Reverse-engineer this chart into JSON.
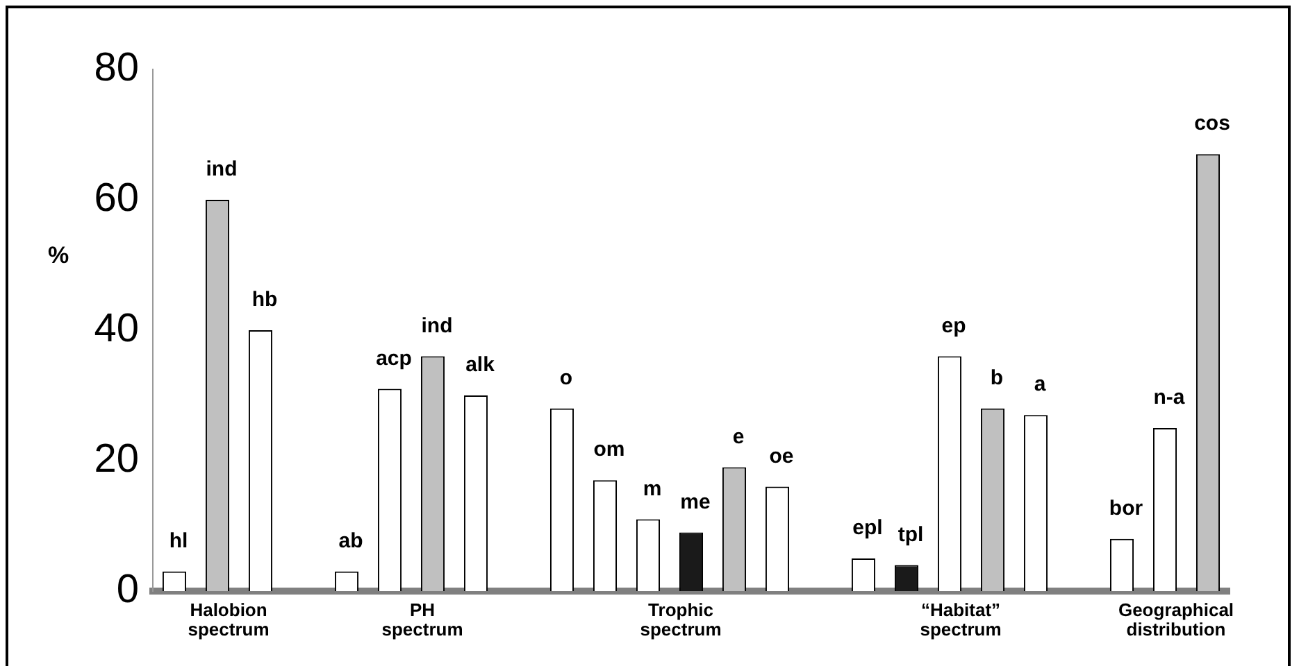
{
  "chart_data": {
    "type": "bar",
    "ylabel": "%",
    "categories": [
      "hl",
      "ind",
      "hb",
      null,
      "ab",
      "acp",
      "ind",
      "alk",
      null,
      "o",
      "om",
      "m",
      "me",
      "e",
      "oe",
      null,
      "epl",
      "tpl",
      "ep",
      "b",
      "a",
      null,
      "bor",
      "n-a",
      "cos"
    ],
    "values": [
      3,
      60,
      40,
      null,
      3,
      31,
      36,
      30,
      null,
      28,
      17,
      11,
      9,
      19,
      16,
      null,
      5,
      4,
      36,
      28,
      27,
      null,
      8,
      25,
      67
    ],
    "colors": [
      "#ffffff",
      "#c0c0c0",
      "#ffffff",
      null,
      "#ffffff",
      "#ffffff",
      "#c0c0c0",
      "#ffffff",
      null,
      "#ffffff",
      "#ffffff",
      "#ffffff",
      "#1a1a1a",
      "#c0c0c0",
      "#ffffff",
      null,
      "#ffffff",
      "#1a1a1a",
      "#ffffff",
      "#c0c0c0",
      "#ffffff",
      null,
      "#ffffff",
      "#ffffff",
      "#c0c0c0"
    ],
    "ylim": [
      0,
      80
    ],
    "yticks": [
      0,
      20,
      40,
      60,
      80
    ],
    "grid": false,
    "legend": false,
    "annotations": [
      "Halobion spectrum",
      "PH spectrum",
      "Trophic spectrum",
      "“Habitat” spectrum",
      "Geographical distribution"
    ]
  }
}
